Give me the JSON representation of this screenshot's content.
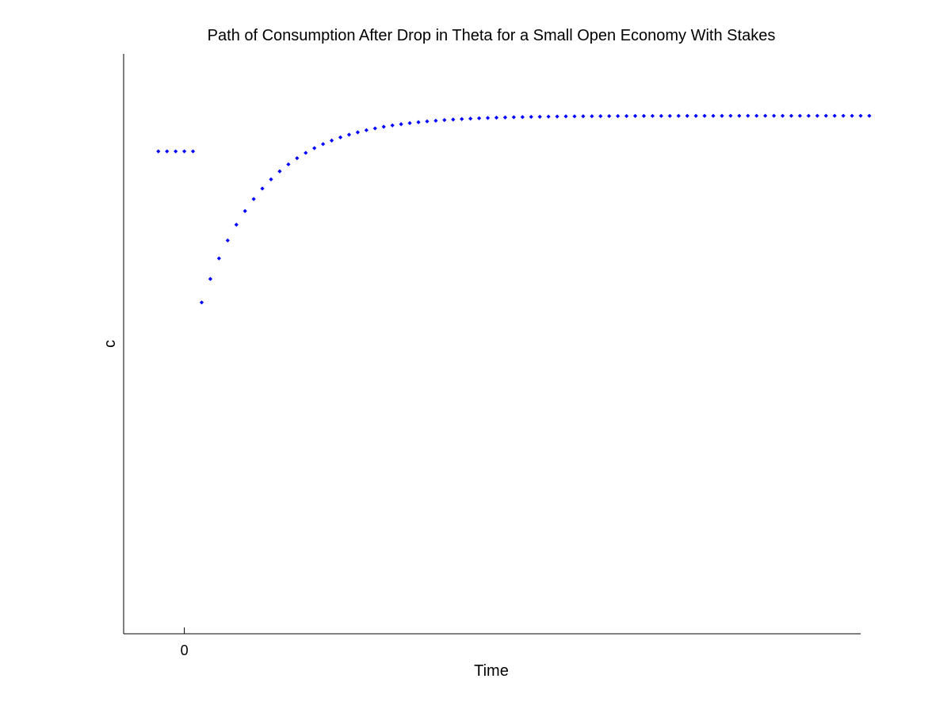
{
  "chart_data": {
    "type": "scatter",
    "title": "Path of Consumption After Drop in Theta for a Small Open Economy With Stakes",
    "xlabel": "Time",
    "ylabel": "c",
    "xlim": [
      -7,
      78
    ],
    "ylim": [
      0,
      1
    ],
    "x_ticks": [
      {
        "value": 0,
        "label": "0"
      }
    ],
    "y_ticks": [],
    "grid": false,
    "marker_color": "#0000ff",
    "series": [
      {
        "x": [
          -3,
          -2,
          -1,
          0,
          1,
          2,
          3,
          4,
          5,
          6,
          7,
          8,
          9,
          10,
          11,
          12,
          13,
          14,
          15,
          16,
          17,
          18,
          19,
          20,
          21,
          22,
          23,
          24,
          25,
          26,
          27,
          28,
          29,
          30,
          31,
          32,
          33,
          34,
          35,
          36,
          37,
          38,
          39,
          40,
          41,
          42,
          43,
          44,
          45,
          46,
          47,
          48,
          49,
          50,
          51,
          52,
          53,
          54,
          55,
          56,
          57,
          58,
          59,
          60,
          61,
          62,
          63,
          64,
          65,
          66,
          67,
          68,
          69,
          70,
          71,
          72,
          73,
          74,
          75,
          76,
          77,
          78,
          79
        ],
        "y": [
          0.8319,
          0.8319,
          0.8319,
          0.8319,
          0.8319,
          0.5713,
          0.6118,
          0.6473,
          0.6783,
          0.7054,
          0.729,
          0.7497,
          0.7678,
          0.7836,
          0.7975,
          0.8095,
          0.8201,
          0.8293,
          0.8374,
          0.8445,
          0.8506,
          0.856,
          0.8607,
          0.8648,
          0.8684,
          0.8715,
          0.8743,
          0.8767,
          0.8788,
          0.8806,
          0.8822,
          0.8836,
          0.8848,
          0.8859,
          0.8868,
          0.8876,
          0.8883,
          0.889,
          0.8895,
          0.89,
          0.8904,
          0.8908,
          0.8911,
          0.8914,
          0.8916,
          0.8918,
          0.892,
          0.8922,
          0.8923,
          0.8924,
          0.8925,
          0.8926,
          0.8927,
          0.8928,
          0.8928,
          0.8929,
          0.8929,
          0.893,
          0.893,
          0.893,
          0.8931,
          0.8931,
          0.8931,
          0.8931,
          0.8931,
          0.8931,
          0.8932,
          0.8932,
          0.8932,
          0.8932,
          0.8932,
          0.8932,
          0.8932,
          0.8932,
          0.8932,
          0.8932,
          0.8932,
          0.8932,
          0.8932,
          0.8932,
          0.8932,
          0.8932,
          0.8932
        ]
      }
    ]
  }
}
